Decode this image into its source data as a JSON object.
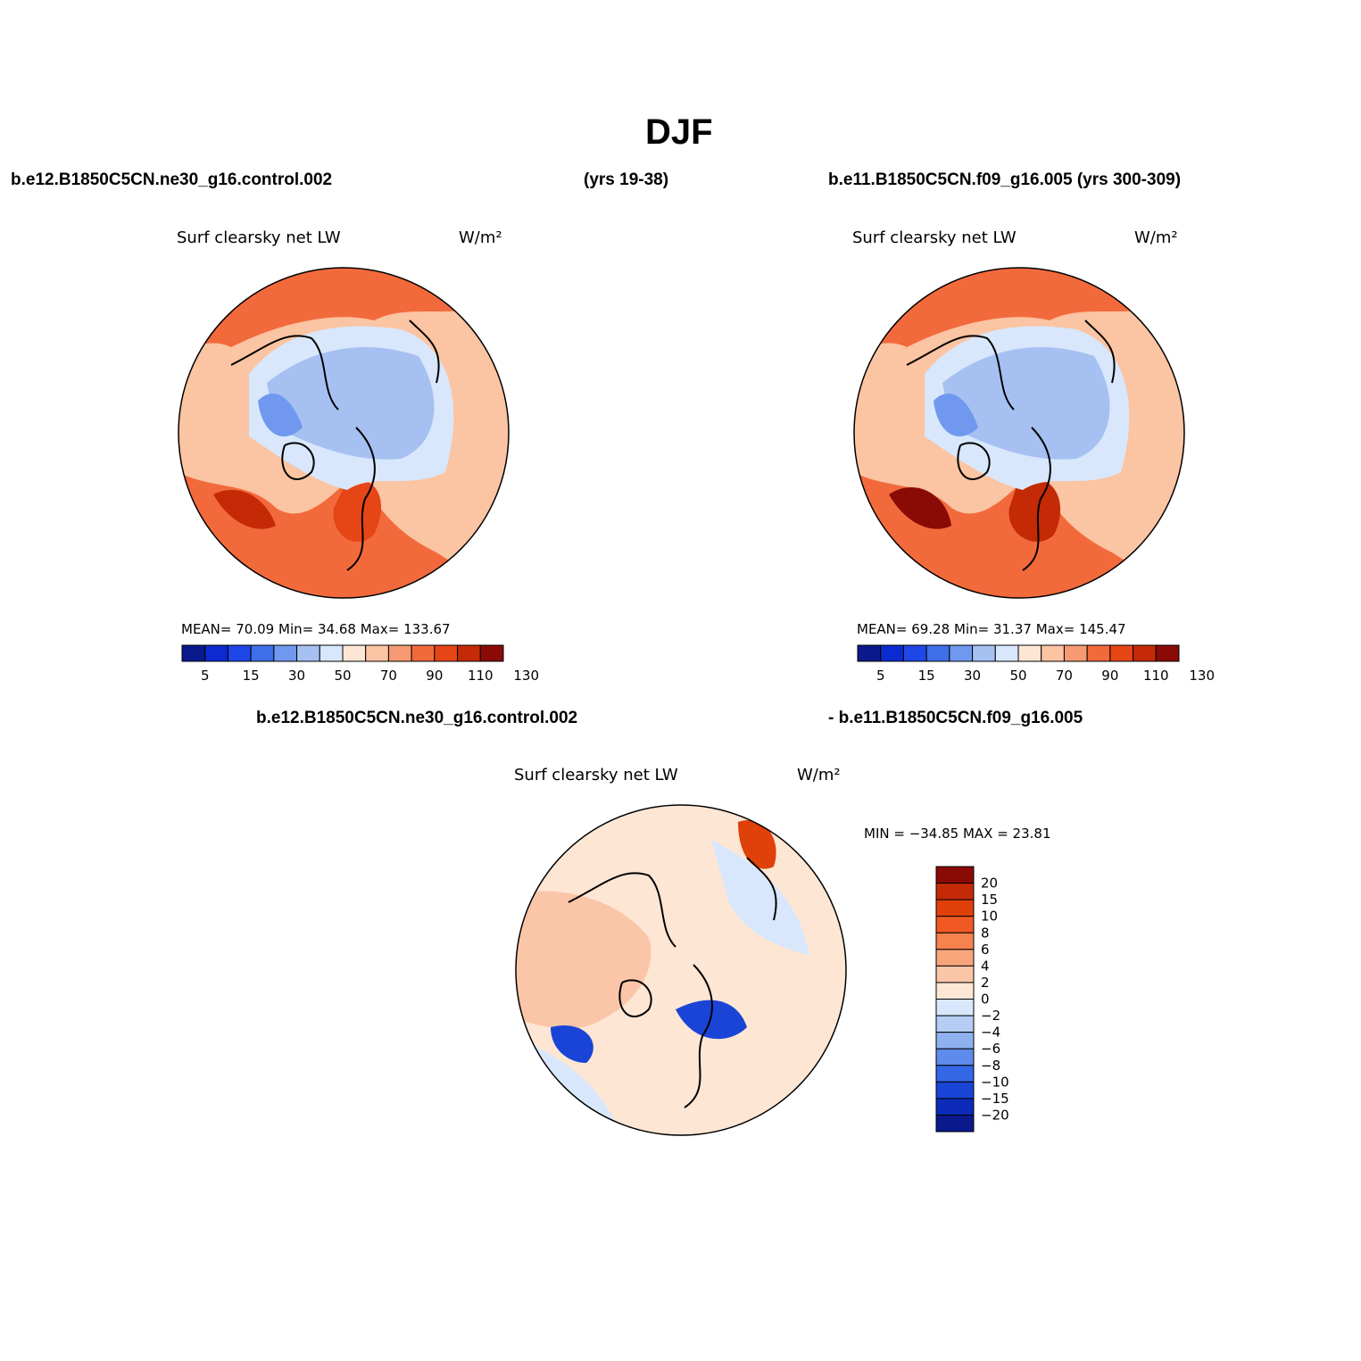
{
  "page": {
    "title": "DJF",
    "case_a": "b.e12.B1850C5CN.ne30_g16.control.002",
    "case_a_years": "(yrs 19-38)",
    "case_b": "b.e11.B1850C5CN.f09_g16.005 (yrs 300-309)",
    "diff_case_a": "b.e12.B1850C5CN.ne30_g16.control.002",
    "diff_case_b": "- b.e11.B1850C5CN.f09_g16.005"
  },
  "panels": [
    {
      "variable": "Surf clearsky net LW",
      "units": "W/m²",
      "stats": {
        "mean_label": "MEAN=",
        "mean": "70.09",
        "min_label": "Min=",
        "min": "34.68",
        "max_label": "Max=",
        "max": "133.67"
      }
    },
    {
      "variable": "Surf clearsky net LW",
      "units": "W/m²",
      "stats": {
        "mean_label": "MEAN=",
        "mean": "69.28",
        "min_label": "Min=",
        "min": "31.37",
        "max_label": "Max=",
        "max": "145.47"
      }
    }
  ],
  "diff_panel": {
    "variable": "Surf clearsky net LW",
    "units": "W/m²",
    "minmax": "MIN = −34.85 MAX =  23.81"
  },
  "colorbar_main": {
    "colors": [
      "#0a1a8c",
      "#0b2bd0",
      "#1f47e8",
      "#3f6fe8",
      "#6f98ee",
      "#a6c0f2",
      "#d8e7fb",
      "#fde6d4",
      "#fbc4a2",
      "#f59a72",
      "#f26a3c",
      "#e64616",
      "#c42a06",
      "#8a0a06"
    ],
    "tick_labels": [
      "5",
      "15",
      "30",
      "50",
      "70",
      "90",
      "110",
      "130"
    ]
  },
  "colorbar_diff": {
    "colors": [
      "#8a0a06",
      "#c42a06",
      "#e0400a",
      "#f05a22",
      "#f6824e",
      "#f9a57c",
      "#fbc6a8",
      "#fde6d4",
      "#d8e7fb",
      "#b5cdf4",
      "#8fb1f0",
      "#5f8bec",
      "#3467e6",
      "#1a44d6",
      "#0b2bb8",
      "#0a1a8c"
    ],
    "tick_labels": [
      "20",
      "15",
      "10",
      "8",
      "6",
      "4",
      "2",
      "0",
      "−2",
      "−4",
      "−6",
      "−8",
      "−10",
      "−15",
      "−20"
    ]
  }
}
